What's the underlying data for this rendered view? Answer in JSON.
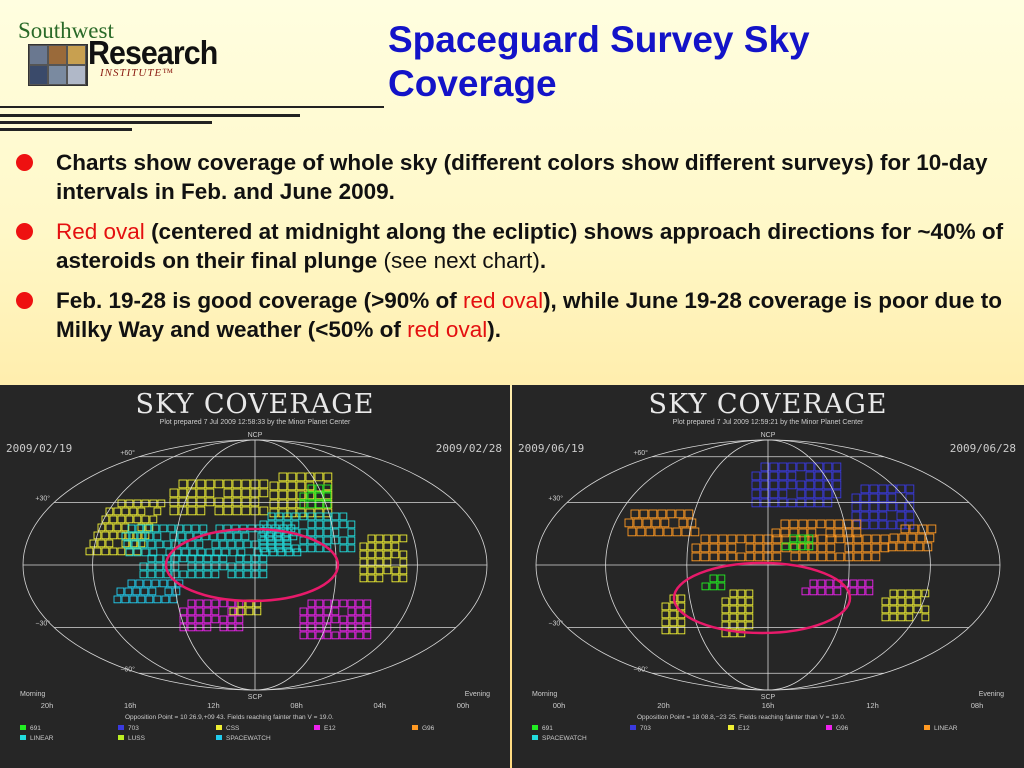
{
  "logo": {
    "line1": "Southwest",
    "line2": "Research",
    "line3": "INSTITUTE™"
  },
  "title": {
    "line1": "Spaceguard Survey Sky",
    "line2": "Coverage"
  },
  "bullets": [
    {
      "parts": [
        {
          "text": "Charts show coverage of whole sky (different colors show different surveys) for 10-day intervals in Feb. and June 2009.",
          "style": "bold"
        }
      ]
    },
    {
      "parts": [
        {
          "text": "Red oval",
          "style": "red"
        },
        {
          "text": " (centered at midnight along the ecliptic) shows approach directions for ~40% of asteroids on their final plunge",
          "style": "bold"
        },
        {
          "text": " (see next chart)",
          "style": "plain"
        },
        {
          "text": ".",
          "style": "bold"
        }
      ]
    },
    {
      "parts": [
        {
          "text": "Feb. 19-28 is good coverage (>90% of ",
          "style": "bold"
        },
        {
          "text": "red oval",
          "style": "red"
        },
        {
          "text": "), while June 19-28 coverage is poor due to Milky Way and weather (<50% of ",
          "style": "bold"
        },
        {
          "text": "red oval",
          "style": "red"
        },
        {
          "text": ").",
          "style": "bold"
        }
      ]
    }
  ],
  "sky_charts": [
    {
      "heading": "SKY COVERAGE",
      "subheading": "Plot prepared 7 Jul 2009 12:58:33 by the Minor Planet Center",
      "date_start": "2009/02/19",
      "date_end": "2009/02/28",
      "pole_top": "NCP",
      "pole_bottom": "SCP",
      "lat_labels": [
        "+60°",
        "+30°",
        "−30°",
        "−60°"
      ],
      "ra_labels": [
        "20h",
        "16h",
        "12h",
        "08h",
        "04h",
        "00h"
      ],
      "morning": "Morning",
      "evening": "Evening",
      "opposition": "Opposition Point = 10 26.9,+09 43.  Fields reaching fainter than V = 19.0.",
      "legend": [
        {
          "label": "691",
          "color": "#22ee22"
        },
        {
          "label": "703",
          "color": "#3a3ae0"
        },
        {
          "label": "CSS",
          "color": "#eeee33"
        },
        {
          "label": "E12",
          "color": "#ee22ee"
        },
        {
          "label": "G96",
          "color": "#ff9922"
        },
        {
          "label": "LINEAR",
          "color": "#22dddd"
        },
        {
          "label": "LUSS",
          "color": "#bbee22"
        },
        {
          "label": "SPACEWATCH",
          "color": "#22ccee"
        }
      ]
    },
    {
      "heading": "SKY COVERAGE",
      "subheading": "Plot prepared 7 Jul 2009 12:59:21 by the Minor Planet Center",
      "date_start": "2009/06/19",
      "date_end": "2009/06/28",
      "pole_top": "NCP",
      "pole_bottom": "SCP",
      "lat_labels": [
        "+60°",
        "+30°",
        "−30°",
        "−60°"
      ],
      "ra_labels": [
        "00h",
        "20h",
        "16h",
        "12h",
        "08h"
      ],
      "morning": "Morning",
      "evening": "Evening",
      "opposition": "Opposition Point = 18 08.8,−23 25.  Fields reaching fainter than V = 19.0.",
      "legend": [
        {
          "label": "691",
          "color": "#22ee22"
        },
        {
          "label": "703",
          "color": "#3a3ae0"
        },
        {
          "label": "E12",
          "color": "#eeee33"
        },
        {
          "label": "G96",
          "color": "#ee22ee"
        },
        {
          "label": "LINEAR",
          "color": "#ff9922"
        },
        {
          "label": "SPACEWATCH",
          "color": "#22dddd"
        }
      ]
    }
  ],
  "colors": {
    "title": "#1313c8",
    "bullet": "#ee1111",
    "red_text": "#e41010",
    "oval": "#e81a6a",
    "background": "#fff8c8"
  }
}
